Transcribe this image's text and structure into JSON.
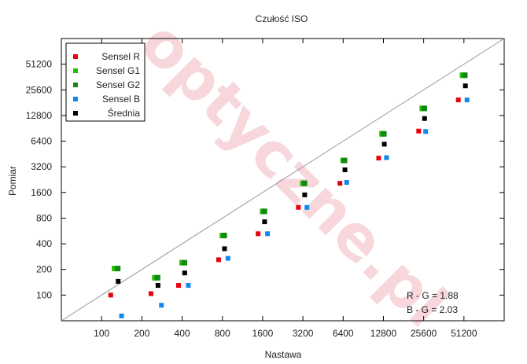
{
  "chart_data": {
    "type": "scatter",
    "title": "Czułość ISO",
    "xlabel": "Nastawa",
    "ylabel": "Pomiar",
    "x_scale": "log2",
    "y_scale": "log2",
    "x_ticks": [
      100,
      200,
      400,
      800,
      1600,
      3200,
      6400,
      12800,
      25600,
      51200
    ],
    "y_ticks": [
      100,
      200,
      400,
      800,
      1600,
      3200,
      6400,
      12800,
      25600,
      51200
    ],
    "xlim": [
      50,
      102400
    ],
    "ylim": [
      50,
      102400
    ],
    "grid": false,
    "legend_position": "top-left",
    "reference_line": "y = x",
    "watermark": "optyczne.pl",
    "series": [
      {
        "name": "Sensel R",
        "color": "#e8000b",
        "x": [
          117,
          234,
          376,
          750,
          1480,
          2960,
          6050,
          11800,
          23500,
          46500
        ],
        "values": [
          100,
          104,
          130,
          260,
          525,
          1070,
          2050,
          4050,
          8400,
          19500
        ]
      },
      {
        "name": "Sensel G1",
        "color": "#22bb00",
        "x": [
          125,
          250,
          400,
          800,
          1600,
          3200,
          6400,
          12500,
          25000,
          50000
        ],
        "values": [
          205,
          160,
          240,
          500,
          960,
          2050,
          3800,
          7800,
          15500,
          38000
        ]
      },
      {
        "name": "Sensel G2",
        "color": "#118811",
        "x": [
          132,
          262,
          416,
          826,
          1650,
          3290,
          6550,
          12900,
          25900,
          52000
        ],
        "values": [
          205,
          160,
          240,
          500,
          960,
          2050,
          3800,
          7800,
          15500,
          38000
        ]
      },
      {
        "name": "Sensel B",
        "color": "#1188ee",
        "x": [
          141,
          280,
          445,
          880,
          1740,
          3430,
          6800,
          13500,
          26500,
          54000
        ],
        "values": [
          57,
          76,
          130,
          270,
          525,
          1070,
          2100,
          4100,
          8300,
          19500
        ]
      },
      {
        "name": "Średnia",
        "color": "#000000",
        "x": [
          133,
          264,
          418,
          830,
          1655,
          3300,
          6600,
          13000,
          26000,
          52500
        ],
        "values": [
          145,
          130,
          182,
          350,
          725,
          1500,
          2950,
          5900,
          11800,
          28500
        ]
      }
    ],
    "annotations": [
      "R - G = 1.88",
      "B - G = 2.03"
    ]
  }
}
